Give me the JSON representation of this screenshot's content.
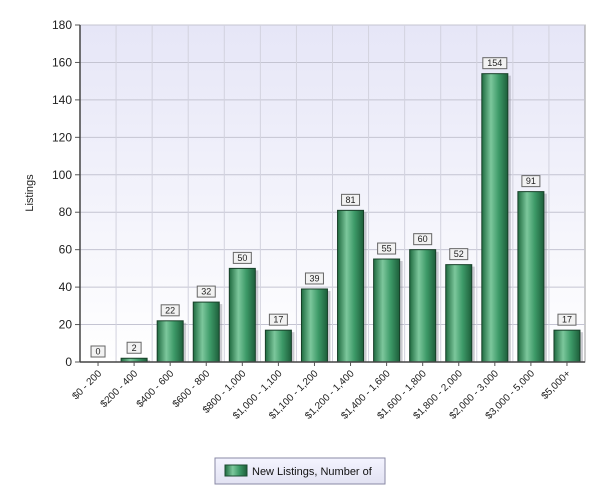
{
  "chart_data": {
    "type": "bar",
    "title": "",
    "xlabel": "",
    "ylabel": "Listings",
    "ylim": [
      0,
      180
    ],
    "yticks": [
      0,
      20,
      40,
      60,
      80,
      100,
      120,
      140,
      160,
      180
    ],
    "grid": true,
    "legend_position": "bottom-center",
    "categories": [
      "$0 - 200",
      "$200 - 400",
      "$400 - 600",
      "$600 - 800",
      "$800 - 1,000",
      "$1,000 - 1,100",
      "$1,100 - 1,200",
      "$1,200 - 1,400",
      "$1,400 - 1,600",
      "$1,600 - 1,800",
      "$1,800 - 2,000",
      "$2,000 - 3,000",
      "$3,000 - 5,000",
      "$5,000+"
    ],
    "series": [
      {
        "name": "New Listings, Number of",
        "values": [
          0,
          2,
          22,
          32,
          50,
          17,
          39,
          81,
          55,
          60,
          52,
          154,
          91,
          17
        ],
        "color": "#2e8b5a"
      }
    ]
  }
}
